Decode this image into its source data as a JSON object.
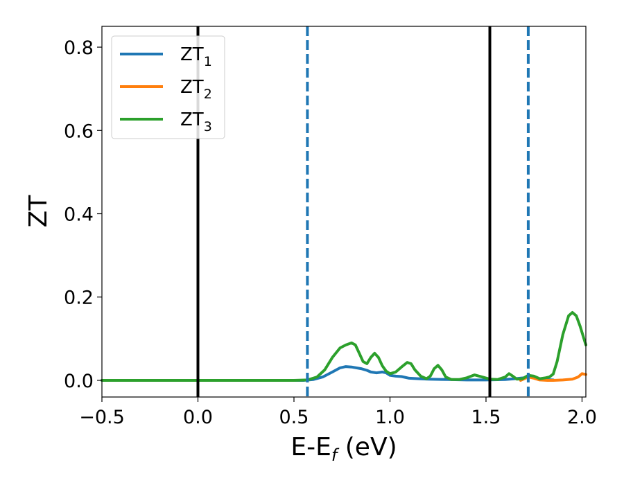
{
  "chart_data": {
    "type": "line",
    "xlabel": "E-E",
    "xlabel_sub": "f",
    "xlabel_unit": " (eV)",
    "ylabel": "ZT",
    "xlim": [
      -0.5,
      2.02
    ],
    "ylim": [
      -0.04,
      0.85
    ],
    "x_ticks": [
      -0.5,
      0.0,
      0.5,
      1.0,
      1.5,
      2.0
    ],
    "x_tick_labels": [
      "−0.5",
      "0.0",
      "0.5",
      "1.0",
      "1.5",
      "2.0"
    ],
    "y_ticks": [
      0.0,
      0.2,
      0.4,
      0.6,
      0.8
    ],
    "y_tick_labels": [
      "0.0",
      "0.2",
      "0.4",
      "0.6",
      "0.8"
    ],
    "grid": false,
    "legend_position": "top-left",
    "vertical_lines": [
      {
        "x": 0.0,
        "style": "solid",
        "color": "#000000"
      },
      {
        "x": 1.52,
        "style": "solid",
        "color": "#000000"
      },
      {
        "x": 0.57,
        "style": "dashed",
        "color": "#1f77b4"
      },
      {
        "x": 1.72,
        "style": "dashed",
        "color": "#1f77b4"
      }
    ],
    "series": [
      {
        "name": "ZT",
        "sub": "1",
        "color": "#1f77b4",
        "points": [
          [
            -0.5,
            0
          ],
          [
            0.5,
            0
          ],
          [
            0.55,
            0
          ],
          [
            0.6,
            0.002
          ],
          [
            0.65,
            0.008
          ],
          [
            0.7,
            0.02
          ],
          [
            0.74,
            0.03
          ],
          [
            0.77,
            0.033
          ],
          [
            0.8,
            0.032
          ],
          [
            0.85,
            0.028
          ],
          [
            0.88,
            0.024
          ],
          [
            0.9,
            0.02
          ],
          [
            0.93,
            0.018
          ],
          [
            0.96,
            0.02
          ],
          [
            0.98,
            0.018
          ],
          [
            1.0,
            0.012
          ],
          [
            1.03,
            0.01
          ],
          [
            1.06,
            0.009
          ],
          [
            1.1,
            0.005
          ],
          [
            1.15,
            0.004
          ],
          [
            1.2,
            0.003
          ],
          [
            1.3,
            0.002
          ],
          [
            1.4,
            0.001
          ],
          [
            1.5,
            0.001
          ],
          [
            1.6,
            0.002
          ],
          [
            1.65,
            0.004
          ],
          [
            1.7,
            0.006
          ],
          [
            1.72,
            0.008
          ],
          [
            1.75,
            0.006
          ],
          [
            1.8,
            0.002
          ],
          [
            1.85,
            0.001
          ]
        ]
      },
      {
        "name": "ZT",
        "sub": "2",
        "color": "#ff7f0e",
        "points": [
          [
            1.68,
            0
          ],
          [
            1.72,
            0.008
          ],
          [
            1.75,
            0.005
          ],
          [
            1.78,
            0.001
          ],
          [
            1.82,
            0.0
          ],
          [
            1.85,
            0.0
          ],
          [
            1.9,
            0.001
          ],
          [
            1.95,
            0.003
          ],
          [
            1.98,
            0.008
          ],
          [
            2.0,
            0.016
          ],
          [
            2.02,
            0.014
          ]
        ]
      },
      {
        "name": "ZT",
        "sub": "3",
        "color": "#2ca02c",
        "points": [
          [
            -0.5,
            0
          ],
          [
            0.5,
            0
          ],
          [
            0.57,
            0.001
          ],
          [
            0.62,
            0.008
          ],
          [
            0.66,
            0.025
          ],
          [
            0.7,
            0.055
          ],
          [
            0.74,
            0.078
          ],
          [
            0.77,
            0.085
          ],
          [
            0.8,
            0.09
          ],
          [
            0.82,
            0.085
          ],
          [
            0.84,
            0.065
          ],
          [
            0.86,
            0.045
          ],
          [
            0.88,
            0.04
          ],
          [
            0.9,
            0.055
          ],
          [
            0.92,
            0.065
          ],
          [
            0.94,
            0.055
          ],
          [
            0.96,
            0.035
          ],
          [
            0.98,
            0.022
          ],
          [
            1.0,
            0.016
          ],
          [
            1.03,
            0.02
          ],
          [
            1.06,
            0.032
          ],
          [
            1.09,
            0.043
          ],
          [
            1.11,
            0.04
          ],
          [
            1.13,
            0.025
          ],
          [
            1.16,
            0.01
          ],
          [
            1.19,
            0.004
          ],
          [
            1.21,
            0.01
          ],
          [
            1.23,
            0.028
          ],
          [
            1.25,
            0.036
          ],
          [
            1.27,
            0.025
          ],
          [
            1.29,
            0.008
          ],
          [
            1.32,
            0.002
          ],
          [
            1.36,
            0.002
          ],
          [
            1.4,
            0.006
          ],
          [
            1.44,
            0.013
          ],
          [
            1.48,
            0.008
          ],
          [
            1.52,
            0.003
          ],
          [
            1.56,
            0.002
          ],
          [
            1.6,
            0.008
          ],
          [
            1.62,
            0.016
          ],
          [
            1.64,
            0.01
          ],
          [
            1.66,
            0.003
          ],
          [
            1.69,
            0.004
          ],
          [
            1.72,
            0.012
          ],
          [
            1.75,
            0.01
          ],
          [
            1.78,
            0.004
          ],
          [
            1.81,
            0.006
          ],
          [
            1.83,
            0.008
          ],
          [
            1.85,
            0.015
          ],
          [
            1.87,
            0.045
          ],
          [
            1.9,
            0.11
          ],
          [
            1.93,
            0.155
          ],
          [
            1.95,
            0.163
          ],
          [
            1.97,
            0.155
          ],
          [
            1.99,
            0.13
          ],
          [
            2.01,
            0.1
          ],
          [
            2.02,
            0.085
          ]
        ]
      }
    ]
  }
}
